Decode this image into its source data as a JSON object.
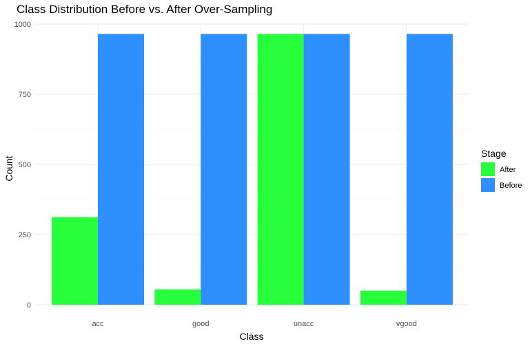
{
  "colors": {
    "after": "#28ff3c",
    "before": "#2e8fff",
    "grid_major": "#ebebeb",
    "grid_minor": "#f3f3f3",
    "tick_text": "#4d4d4d"
  },
  "chart_data": {
    "type": "bar",
    "title": "Class Distribution Before vs. After Over-Sampling",
    "xlabel": "Class",
    "ylabel": "Count",
    "categories": [
      "acc",
      "good",
      "unacc",
      "vgood"
    ],
    "series": [
      {
        "name": "After",
        "values": [
          312,
          55,
          965,
          50
        ]
      },
      {
        "name": "Before",
        "values": [
          965,
          965,
          965,
          965
        ]
      }
    ],
    "ylim": [
      0,
      1000
    ],
    "yticks": [
      0,
      250,
      500,
      750,
      1000
    ],
    "grid": true,
    "legend": {
      "title": "Stage",
      "position": "right",
      "entries": [
        "After",
        "Before"
      ]
    }
  }
}
